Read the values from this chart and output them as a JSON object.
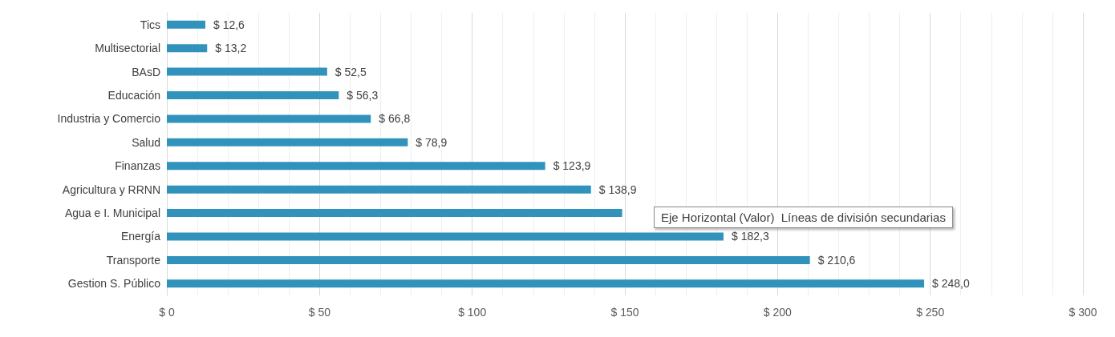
{
  "chart_data": {
    "type": "bar",
    "orientation": "horizontal",
    "categories": [
      "Tics",
      "Multisectorial",
      "BAsD",
      "Educación",
      "Industria y Comercio",
      "Salud",
      "Finanzas",
      "Agricultura y RRNN",
      "Agua e I. Municipal",
      "Energía",
      "Transporte",
      "Gestion S. Público"
    ],
    "values": [
      12.6,
      13.2,
      52.5,
      56.3,
      66.8,
      78.9,
      123.9,
      138.9,
      149.1,
      182.3,
      210.6,
      248.0
    ],
    "value_labels": [
      "$ 12,6",
      "$ 13,2",
      "$ 52,5",
      "$ 56,3",
      "$ 66,8",
      "$ 78,9",
      "$ 123,9",
      "$ 138,9",
      null,
      "$ 182,3",
      "$ 210,6",
      "$ 248,0"
    ],
    "color": "#3193bb",
    "xlim": [
      0,
      300
    ],
    "xticks": [
      {
        "value": 0,
        "label": "$ 0"
      },
      {
        "value": 50,
        "label": "$ 50"
      },
      {
        "value": 100,
        "label": "$ 100"
      },
      {
        "value": 150,
        "label": "$ 150"
      },
      {
        "value": 200,
        "label": "$ 200"
      },
      {
        "value": 250,
        "label": "$ 250"
      },
      {
        "value": 300,
        "label": "$ 300"
      }
    ],
    "grid": "x",
    "annotations": [
      "Eje Horizontal (Valor)  Líneas de división secundarias"
    ]
  }
}
